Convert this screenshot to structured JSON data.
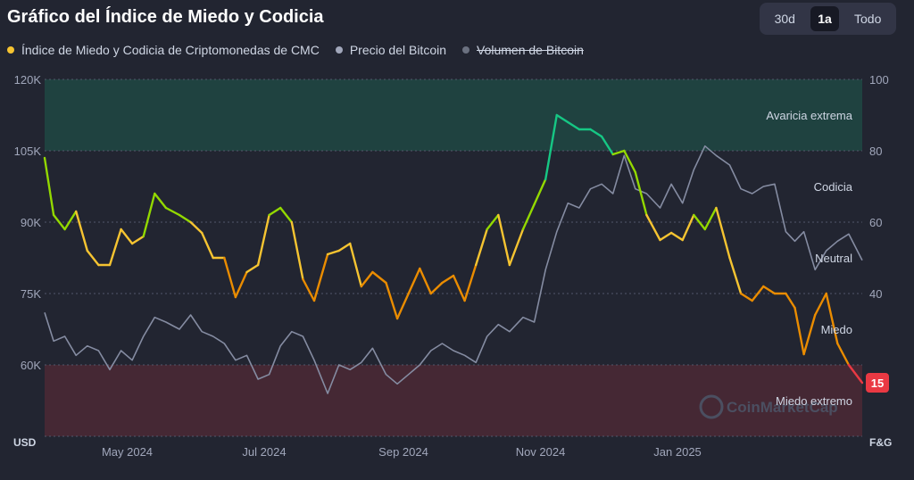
{
  "title": "Gráfico del Índice de Miedo y Codicia",
  "range_buttons": [
    {
      "label": "30d",
      "active": false
    },
    {
      "label": "1a",
      "active": true
    },
    {
      "label": "Todo",
      "active": false
    }
  ],
  "legend": [
    {
      "label": "Índice de Miedo y Codicia de Criptomonedas de CMC",
      "color": "#f6c431",
      "enabled": true
    },
    {
      "label": "Precio del Bitcoin",
      "color": "#a1a7bb",
      "enabled": true
    },
    {
      "label": "Volumen de Bitcoin",
      "color": "#6b7180",
      "enabled": false
    }
  ],
  "watermark": "CoinMarketCap",
  "current_badge": {
    "value": "15",
    "color": "#ea3943"
  },
  "chart_data": {
    "type": "line",
    "x_ticks": [
      "May 2024",
      "Jul 2024",
      "Sep 2024",
      "Nov 2024",
      "Jan 2025"
    ],
    "left_axis": {
      "ticks": [
        "120K",
        "105K",
        "90K",
        "75K",
        "60K"
      ],
      "values": [
        120000,
        105000,
        90000,
        75000,
        60000
      ],
      "unit": "USD",
      "range": [
        45000,
        120000
      ]
    },
    "right_axis": {
      "ticks": [
        "100",
        "80",
        "60",
        "40"
      ],
      "values": [
        100,
        80,
        60,
        40
      ],
      "unit": "F&G",
      "range": [
        0,
        100
      ]
    },
    "zones": [
      {
        "label": "Avaricia extrema",
        "from": 80,
        "to": 100,
        "color": "#16c784"
      },
      {
        "label": "Codicia",
        "from": 60,
        "to": 80,
        "color": null
      },
      {
        "label": "Neutral",
        "from": 40,
        "to": 60,
        "color": null
      },
      {
        "label": "Miedo",
        "from": 20,
        "to": 40,
        "color": null
      },
      {
        "label": "Miedo extremo",
        "from": 0,
        "to": 20,
        "color": "#ea3943"
      }
    ],
    "grid": true,
    "series": [
      {
        "name": "Índice de Miedo y Codicia de Criptomonedas de CMC",
        "axis": "right",
        "dates": [
          "2024-04-01",
          "2024-04-05",
          "2024-04-10",
          "2024-04-15",
          "2024-04-20",
          "2024-04-25",
          "2024-04-30",
          "2024-05-05",
          "2024-05-10",
          "2024-05-15",
          "2024-05-20",
          "2024-05-25",
          "2024-05-31",
          "2024-06-05",
          "2024-06-10",
          "2024-06-15",
          "2024-06-20",
          "2024-06-25",
          "2024-06-30",
          "2024-07-05",
          "2024-07-10",
          "2024-07-15",
          "2024-07-20",
          "2024-07-25",
          "2024-07-30",
          "2024-08-05",
          "2024-08-10",
          "2024-08-15",
          "2024-08-20",
          "2024-08-25",
          "2024-08-31",
          "2024-09-05",
          "2024-09-10",
          "2024-09-15",
          "2024-09-20",
          "2024-09-25",
          "2024-09-30",
          "2024-10-05",
          "2024-10-10",
          "2024-10-15",
          "2024-10-20",
          "2024-10-25",
          "2024-10-31",
          "2024-11-05",
          "2024-11-10",
          "2024-11-15",
          "2024-11-20",
          "2024-11-25",
          "2024-11-30",
          "2024-12-05",
          "2024-12-10",
          "2024-12-15",
          "2024-12-20",
          "2024-12-25",
          "2024-12-31",
          "2025-01-05",
          "2025-01-10",
          "2025-01-15",
          "2025-01-20",
          "2025-01-25",
          "2025-01-31",
          "2025-02-05",
          "2025-02-10",
          "2025-02-15",
          "2025-02-20",
          "2025-02-25",
          "2025-03-01",
          "2025-03-05",
          "2025-03-10",
          "2025-03-15",
          "2025-03-20",
          "2025-03-25",
          "2025-03-31"
        ],
        "values": [
          78,
          62,
          58,
          63,
          52,
          48,
          48,
          58,
          54,
          56,
          68,
          64,
          62,
          60,
          57,
          50,
          50,
          39,
          46,
          48,
          62,
          64,
          60,
          44,
          38,
          51,
          52,
          54,
          42,
          46,
          43,
          33,
          40,
          47,
          40,
          43,
          45,
          38,
          48,
          58,
          62,
          48,
          58,
          65,
          72,
          90,
          88,
          86,
          86,
          84,
          79,
          80,
          74,
          62,
          55,
          57,
          55,
          62,
          58,
          64,
          50,
          40,
          38,
          42,
          40,
          40,
          36,
          23,
          34,
          40,
          26,
          20,
          15
        ]
      },
      {
        "name": "Precio del Bitcoin",
        "axis": "left",
        "dates": [
          "2024-04-01",
          "2024-04-05",
          "2024-04-10",
          "2024-04-15",
          "2024-04-20",
          "2024-04-25",
          "2024-04-30",
          "2024-05-05",
          "2024-05-10",
          "2024-05-15",
          "2024-05-20",
          "2024-05-25",
          "2024-05-31",
          "2024-06-05",
          "2024-06-10",
          "2024-06-15",
          "2024-06-20",
          "2024-06-25",
          "2024-06-30",
          "2024-07-05",
          "2024-07-10",
          "2024-07-15",
          "2024-07-20",
          "2024-07-25",
          "2024-07-30",
          "2024-08-05",
          "2024-08-10",
          "2024-08-15",
          "2024-08-20",
          "2024-08-25",
          "2024-08-31",
          "2024-09-05",
          "2024-09-10",
          "2024-09-15",
          "2024-09-20",
          "2024-09-25",
          "2024-09-30",
          "2024-10-05",
          "2024-10-10",
          "2024-10-15",
          "2024-10-20",
          "2024-10-25",
          "2024-10-31",
          "2024-11-05",
          "2024-11-10",
          "2024-11-15",
          "2024-11-20",
          "2024-11-25",
          "2024-11-30",
          "2024-12-05",
          "2024-12-10",
          "2024-12-15",
          "2024-12-20",
          "2024-12-25",
          "2024-12-31",
          "2025-01-05",
          "2025-01-10",
          "2025-01-15",
          "2025-01-20",
          "2025-01-25",
          "2025-01-31",
          "2025-02-05",
          "2025-02-10",
          "2025-02-15",
          "2025-02-20",
          "2025-02-25",
          "2025-03-01",
          "2025-03-05",
          "2025-03-10",
          "2025-03-15",
          "2025-03-20",
          "2025-03-25",
          "2025-03-31"
        ],
        "values": [
          71000,
          65000,
          66000,
          62000,
          64000,
          63000,
          59000,
          63000,
          61000,
          66000,
          70000,
          69000,
          67500,
          70500,
          67000,
          66000,
          64500,
          61000,
          62000,
          57000,
          58000,
          64000,
          67000,
          66000,
          61000,
          54000,
          60000,
          59000,
          60500,
          63500,
          58000,
          56000,
          58000,
          60000,
          63000,
          64500,
          63000,
          62000,
          60500,
          66000,
          68500,
          67000,
          70000,
          69000,
          80000,
          88000,
          94000,
          93000,
          97000,
          98000,
          96000,
          104000,
          97000,
          96000,
          93000,
          98000,
          94000,
          101000,
          106000,
          104000,
          102000,
          97000,
          96000,
          97500,
          98000,
          88000,
          86000,
          88000,
          80000,
          84000,
          86000,
          87500,
          82000
        ]
      }
    ]
  }
}
